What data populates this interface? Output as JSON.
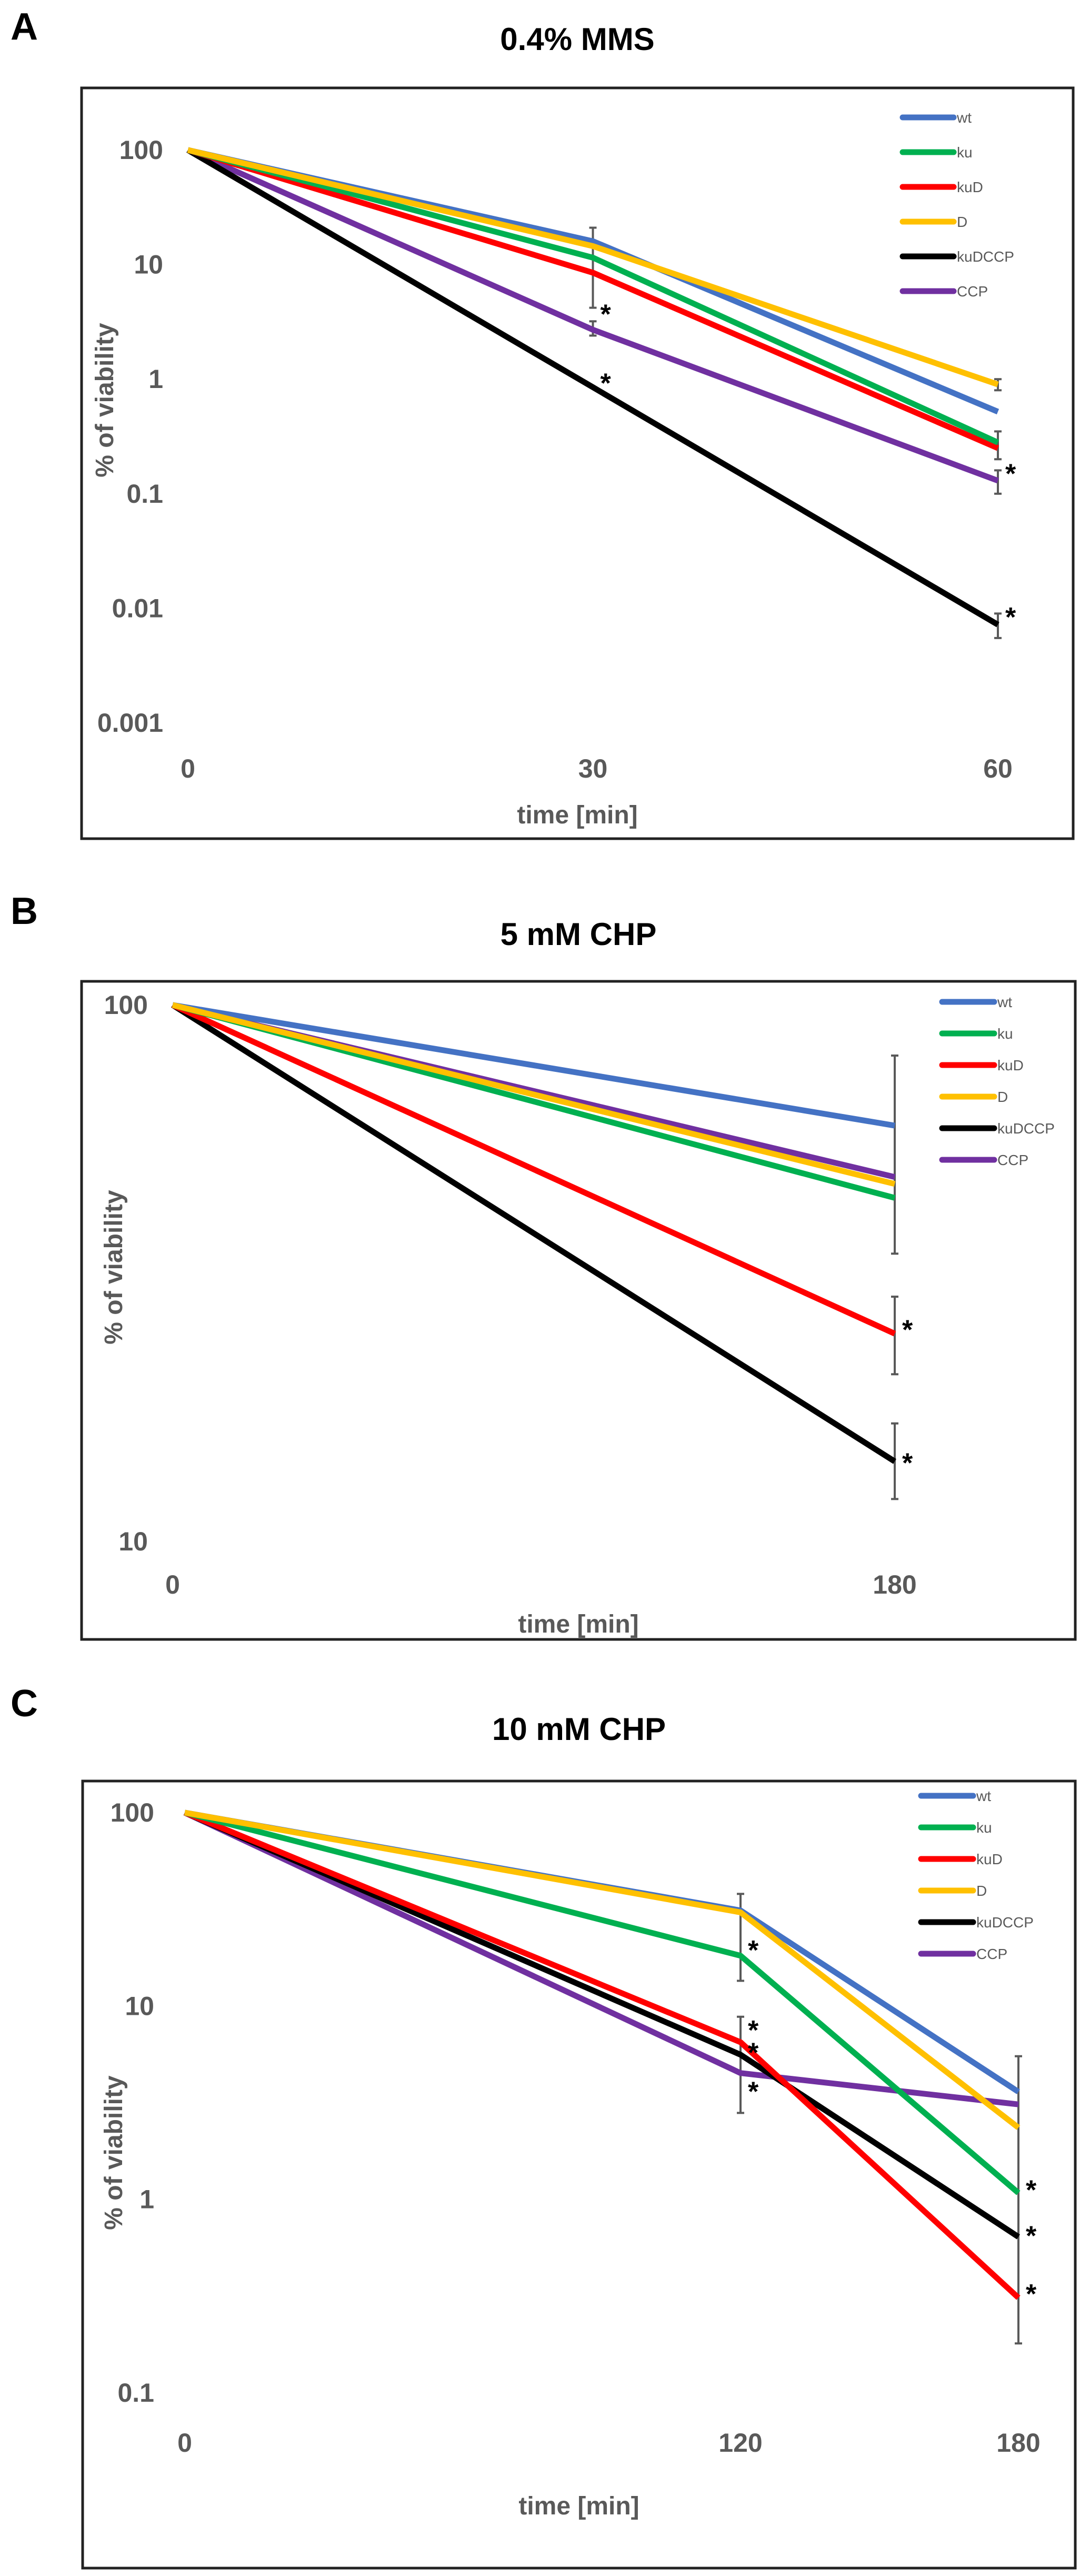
{
  "chart_data": [
    {
      "type": "line",
      "panel_label": "A",
      "title": "0.4% MMS",
      "xlabel": "time [min]",
      "ylabel": "% of viability",
      "yscale": "log",
      "ylim": [
        0.001,
        100
      ],
      "yticks": [
        "100",
        "10",
        "1",
        "0.1",
        "0.01",
        "0.001"
      ],
      "ytick_values": [
        100,
        10,
        1,
        0.1,
        0.01,
        0.001
      ],
      "x": [
        0,
        30,
        60
      ],
      "xticks": [
        "0",
        "30",
        "60"
      ],
      "legend_position": "top-right",
      "series": [
        {
          "name": "wt",
          "color": "#4472C4",
          "values": [
            100,
            16,
            0.52
          ]
        },
        {
          "name": "ku",
          "color": "#00B050",
          "values": [
            100,
            11.5,
            0.28
          ]
        },
        {
          "name": "kuD",
          "color": "#FF0000",
          "values": [
            100,
            8.5,
            0.25
          ]
        },
        {
          "name": "D",
          "color": "#FFC000",
          "values": [
            100,
            14.5,
            0.9
          ]
        },
        {
          "name": "kuDCCP",
          "color": "#000000",
          "values": [
            100,
            0.85,
            0.0072
          ]
        },
        {
          "name": "CCP",
          "color": "#7030A0",
          "values": [
            100,
            2.7,
            0.13
          ]
        }
      ],
      "error_bars": [
        {
          "x": 30,
          "low": 4.2,
          "high": 21
        },
        {
          "x": 30,
          "low": 2.4,
          "high": 3.2
        },
        {
          "x": 60,
          "low": 0.8,
          "high": 1.0
        },
        {
          "x": 60,
          "low": 0.2,
          "high": 0.35
        },
        {
          "x": 60,
          "low": 0.1,
          "high": 0.16
        },
        {
          "x": 60,
          "low": 0.0055,
          "high": 0.009
        }
      ],
      "annotations": [
        {
          "text": "*",
          "x": 30,
          "y": 4.2
        },
        {
          "text": "*",
          "x": 30,
          "y": 1.05
        },
        {
          "text": "*",
          "x": 60,
          "y": 0.17
        },
        {
          "text": "*",
          "x": 60,
          "y": 0.0095
        }
      ]
    },
    {
      "type": "line",
      "panel_label": "B",
      "title": "5 mM CHP",
      "xlabel": "time [min]",
      "ylabel": "% of viability",
      "yscale": "log",
      "ylim": [
        10,
        100
      ],
      "yticks": [
        "100",
        "10"
      ],
      "ytick_values": [
        100,
        10
      ],
      "x": [
        0,
        180
      ],
      "xticks": [
        "0",
        "180"
      ],
      "legend_position": "top-right",
      "series": [
        {
          "name": "wt",
          "color": "#4472C4",
          "values": [
            100,
            59.6
          ]
        },
        {
          "name": "ku",
          "color": "#00B050",
          "values": [
            100,
            43.7
          ]
        },
        {
          "name": "kuD",
          "color": "#FF0000",
          "values": [
            100,
            24.4
          ]
        },
        {
          "name": "D",
          "color": "#FFC000",
          "values": [
            100,
            46.4
          ]
        },
        {
          "name": "kuDCCP",
          "color": "#000000",
          "values": [
            100,
            14.1
          ]
        },
        {
          "name": "CCP",
          "color": "#7030A0",
          "values": [
            100,
            47.8
          ]
        }
      ],
      "error_bars": [
        {
          "x": 180,
          "low": 34.4,
          "high": 80.5
        },
        {
          "x": 180,
          "low": 20.5,
          "high": 28.6
        },
        {
          "x": 180,
          "low": 12.0,
          "high": 16.6
        }
      ],
      "annotations": [
        {
          "text": "*",
          "x": 180,
          "y": 25.5
        },
        {
          "text": "*",
          "x": 180,
          "y": 14.4
        }
      ]
    },
    {
      "type": "line",
      "panel_label": "C",
      "title": "10 mM CHP",
      "xlabel": "time [min]",
      "ylabel": "% of viability",
      "yscale": "log",
      "ylim": [
        0.1,
        100
      ],
      "yticks": [
        "100",
        "10",
        "1",
        "0.1"
      ],
      "ytick_values": [
        100,
        10,
        1,
        0.1
      ],
      "x": [
        0,
        120,
        180
      ],
      "xticks": [
        "0",
        "120",
        "180"
      ],
      "legend_position": "top-right",
      "series": [
        {
          "name": "wt",
          "color": "#4472C4",
          "values": [
            100,
            31.2,
            3.6
          ]
        },
        {
          "name": "ku",
          "color": "#00B050",
          "values": [
            100,
            18.2,
            1.08
          ]
        },
        {
          "name": "kuD",
          "color": "#FF0000",
          "values": [
            100,
            6.5,
            0.31
          ]
        },
        {
          "name": "D",
          "color": "#FFC000",
          "values": [
            100,
            30.5,
            2.35
          ]
        },
        {
          "name": "kuDCCP",
          "color": "#000000",
          "values": [
            100,
            5.6,
            0.64
          ]
        },
        {
          "name": "CCP",
          "color": "#7030A0",
          "values": [
            100,
            4.5,
            3.1
          ]
        }
      ],
      "error_bars": [
        {
          "x": 120,
          "low": 13.5,
          "high": 38
        },
        {
          "x": 120,
          "low": 2.8,
          "high": 8.8
        },
        {
          "x": 180,
          "low": 0.18,
          "high": 5.5
        }
      ],
      "annotations": [
        {
          "text": "*",
          "x": 120,
          "y": 21
        },
        {
          "text": "*",
          "x": 120,
          "y": 8.1
        },
        {
          "text": "*",
          "x": 120,
          "y": 6.2
        },
        {
          "text": "*",
          "x": 120,
          "y": 3.9
        },
        {
          "text": "*",
          "x": 180,
          "y": 1.21
        },
        {
          "text": "*",
          "x": 180,
          "y": 0.7
        },
        {
          "text": "*",
          "x": 180,
          "y": 0.35
        }
      ]
    }
  ]
}
